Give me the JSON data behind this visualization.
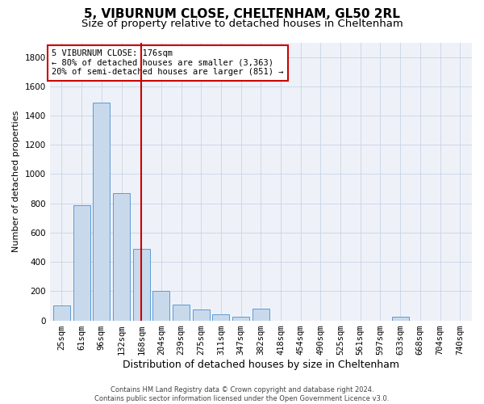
{
  "title1": "5, VIBURNUM CLOSE, CHELTENHAM, GL50 2RL",
  "title2": "Size of property relative to detached houses in Cheltenham",
  "xlabel": "Distribution of detached houses by size in Cheltenham",
  "ylabel": "Number of detached properties",
  "categories": [
    "25sqm",
    "61sqm",
    "96sqm",
    "132sqm",
    "168sqm",
    "204sqm",
    "239sqm",
    "275sqm",
    "311sqm",
    "347sqm",
    "382sqm",
    "418sqm",
    "454sqm",
    "490sqm",
    "525sqm",
    "561sqm",
    "597sqm",
    "633sqm",
    "668sqm",
    "704sqm",
    "740sqm"
  ],
  "values": [
    100,
    790,
    1490,
    870,
    490,
    200,
    110,
    75,
    40,
    25,
    80,
    0,
    0,
    0,
    0,
    0,
    0,
    25,
    0,
    0,
    0
  ],
  "bar_color": "#c9d9ec",
  "bar_edge_color": "#5b9bd5",
  "vline_x_index": 4,
  "vline_color": "#cc0000",
  "annotation_line1": "5 VIBURNUM CLOSE: 176sqm",
  "annotation_line2": "← 80% of detached houses are smaller (3,363)",
  "annotation_line3": "20% of semi-detached houses are larger (851) →",
  "annotation_box_color": "#cc0000",
  "ylim": [
    0,
    1900
  ],
  "yticks": [
    0,
    200,
    400,
    600,
    800,
    1000,
    1200,
    1400,
    1600,
    1800
  ],
  "grid_color": "#c8d4e8",
  "background_color": "#eef2f8",
  "footer": "Contains HM Land Registry data © Crown copyright and database right 2024.\nContains public sector information licensed under the Open Government Licence v3.0.",
  "title1_fontsize": 11,
  "title2_fontsize": 9.5,
  "xlabel_fontsize": 9,
  "ylabel_fontsize": 8,
  "tick_fontsize": 7.5,
  "annotation_fontsize": 7.5,
  "footer_fontsize": 6
}
